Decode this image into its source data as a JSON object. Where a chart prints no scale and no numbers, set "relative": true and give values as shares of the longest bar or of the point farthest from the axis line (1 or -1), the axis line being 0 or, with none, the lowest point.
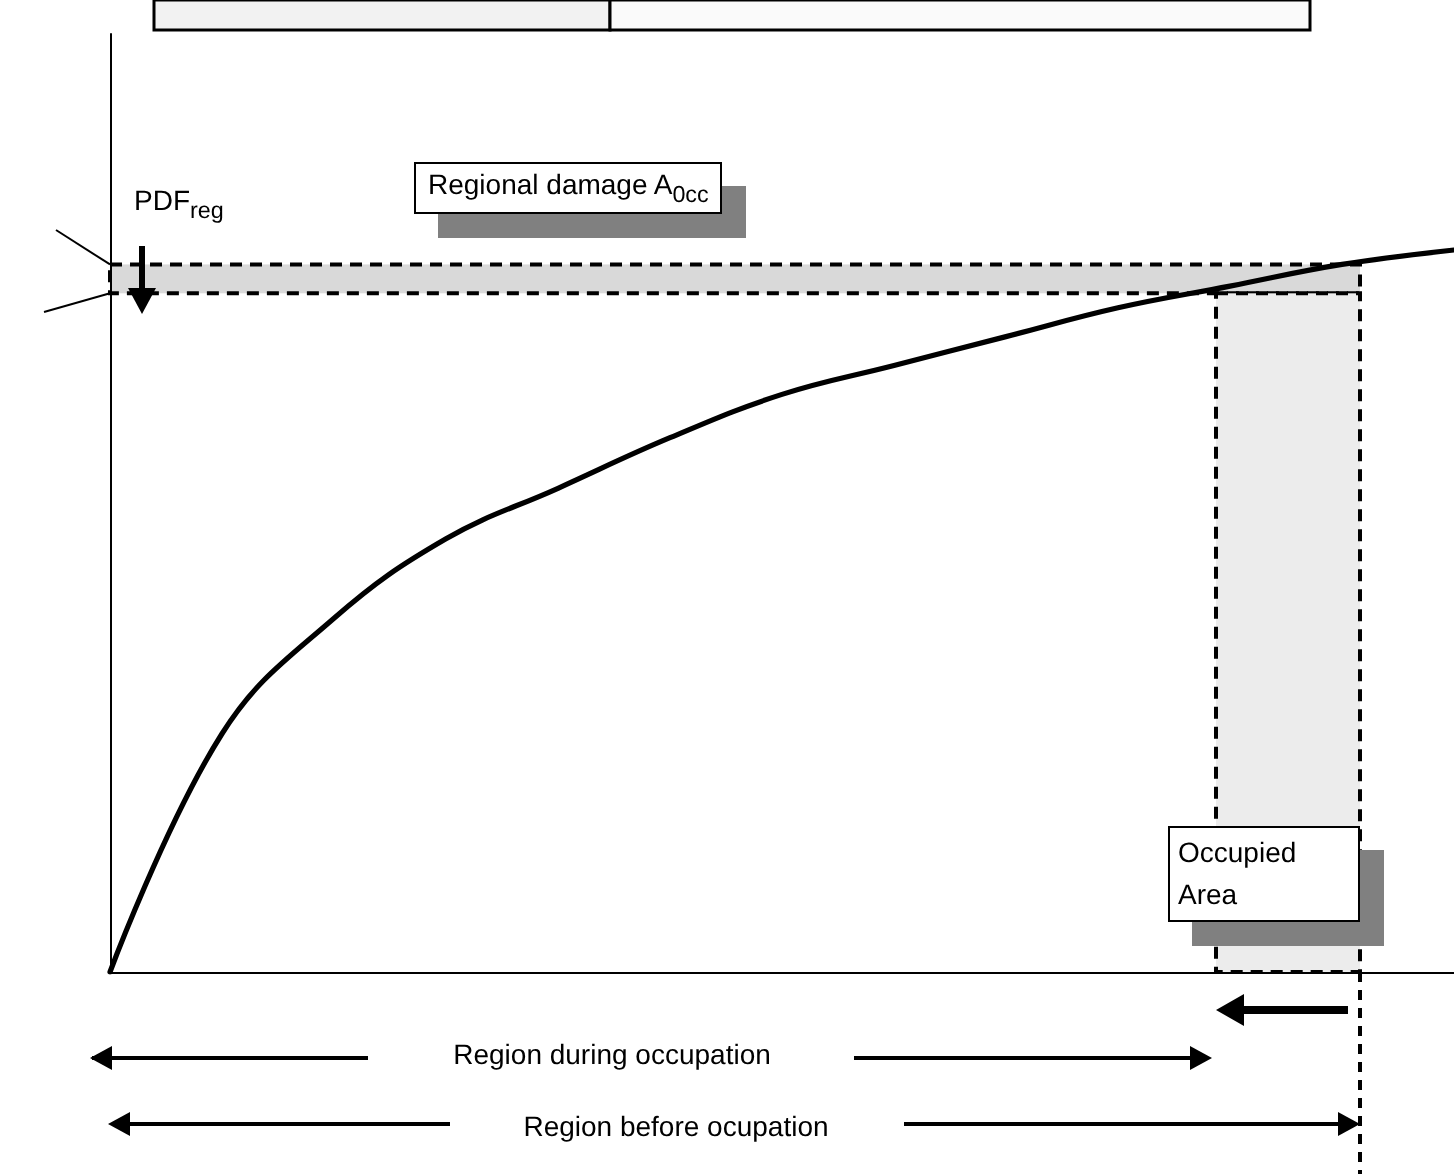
{
  "chart_data": {
    "type": "line",
    "relative": true,
    "categories": [
      null,
      null,
      null,
      null,
      null,
      null,
      null,
      null,
      null,
      null,
      null,
      null,
      null
    ],
    "tick_labels": false,
    "marker": "none",
    "line_style": "solid",
    "grid": false,
    "series": [
      {
        "color": "#000000",
        "values": [
          0,
          0.33,
          0.49,
          0.6,
          0.67,
          0.74,
          0.8,
          0.84,
          0.88,
          0.92,
          0.95,
          0.98,
          1
        ]
      }
    ],
    "bands": [
      {
        "axis": "y",
        "from": 0.94,
        "to": 0.98,
        "label": "Regional damage A$_{0cc}$",
        "color": "#d9d9d9"
      }
    ],
    "annotations": [
      "PDF$_{reg}$",
      "Region during occupation",
      "Region before ocupation",
      "Occupied Area"
    ]
  }
}
